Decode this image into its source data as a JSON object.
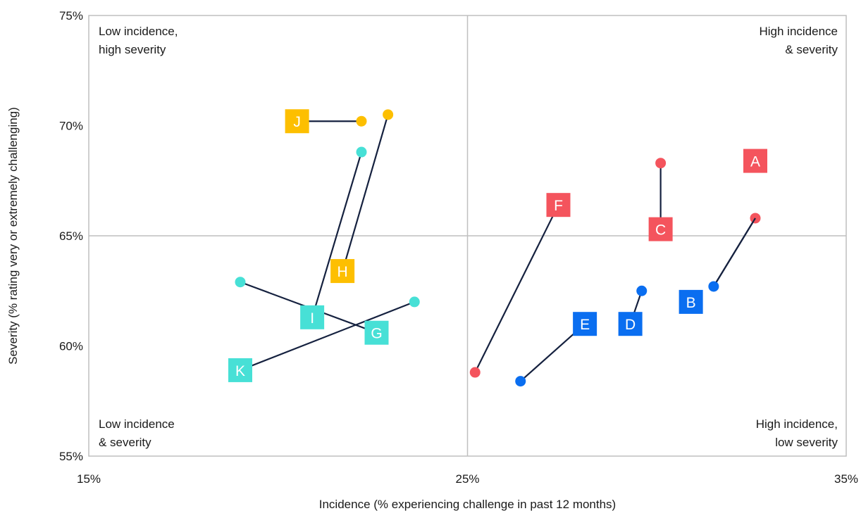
{
  "chart_data": {
    "type": "scatter",
    "title": "",
    "xlabel": "Incidence  (% experiencing challenge in past 12 months)",
    "ylabel": "Severity  (% rating very or extremely challenging)",
    "xlim": [
      15,
      35
    ],
    "ylim": [
      55,
      75
    ],
    "x_ticks": [
      {
        "value": 15,
        "label": "15%"
      },
      {
        "value": 25,
        "label": "25%"
      },
      {
        "value": 35,
        "label": "35%"
      }
    ],
    "y_ticks": [
      {
        "value": 55,
        "label": "55%"
      },
      {
        "value": 60,
        "label": "60%"
      },
      {
        "value": 65,
        "label": "65%"
      },
      {
        "value": 70,
        "label": "70%"
      },
      {
        "value": 75,
        "label": "75%"
      }
    ],
    "quadrant_dividers": {
      "x": 25,
      "y": 65
    },
    "quadrant_labels": [
      {
        "position": "top-left",
        "lines": [
          "Low incidence,",
          "high severity"
        ]
      },
      {
        "position": "top-right",
        "lines": [
          "High incidence",
          "& severity"
        ]
      },
      {
        "position": "bottom-left",
        "lines": [
          "Low incidence",
          "& severity"
        ]
      },
      {
        "position": "bottom-right",
        "lines": [
          "High incidence,",
          "low severity"
        ]
      }
    ],
    "colors": {
      "red": "#f4545d",
      "blue": "#0a6ef0",
      "yellow": "#fdbf00",
      "teal": "#47e0d6",
      "line": "#15213f",
      "grid": "#bfbfbf"
    },
    "series": [
      {
        "label": "A",
        "color": "red",
        "from": {
          "x": 32.6,
          "y": 65.8
        },
        "to": {
          "x": 31.5,
          "y": 62.7
        },
        "label_at": {
          "x": 32.6,
          "y": 68.4
        }
      },
      {
        "label": "B",
        "color": "blue",
        "from": {
          "x": 31.5,
          "y": 62.7
        },
        "to": {
          "x": 32.6,
          "y": 65.8
        },
        "label_at": {
          "x": 30.9,
          "y": 62.0
        }
      },
      {
        "label": "C",
        "color": "red",
        "from": {
          "x": 30.1,
          "y": 68.3
        },
        "to": {
          "x": 30.1,
          "y": 65.3
        },
        "label_at": {
          "x": 30.1,
          "y": 65.3
        }
      },
      {
        "label": "D",
        "color": "blue",
        "from": {
          "x": 29.6,
          "y": 62.5
        },
        "to": {
          "x": 29.3,
          "y": 61.0
        },
        "label_at": {
          "x": 29.3,
          "y": 61.0
        }
      },
      {
        "label": "E",
        "color": "blue",
        "from": {
          "x": 26.4,
          "y": 58.4
        },
        "to": {
          "x": 28.1,
          "y": 61.0
        },
        "label_at": {
          "x": 28.1,
          "y": 61.0
        }
      },
      {
        "label": "F",
        "color": "red",
        "from": {
          "x": 25.2,
          "y": 58.8
        },
        "to": {
          "x": 27.4,
          "y": 66.4
        },
        "label_at": {
          "x": 27.4,
          "y": 66.4
        }
      },
      {
        "label": "G",
        "color": "teal",
        "from": {
          "x": 19.0,
          "y": 62.9
        },
        "to": {
          "x": 22.6,
          "y": 60.6
        },
        "label_at": {
          "x": 22.6,
          "y": 60.6
        }
      },
      {
        "label": "H",
        "color": "yellow",
        "from": {
          "x": 22.9,
          "y": 70.5
        },
        "to": {
          "x": 21.7,
          "y": 63.4
        },
        "label_at": {
          "x": 21.7,
          "y": 63.4
        }
      },
      {
        "label": "I",
        "color": "teal",
        "from": {
          "x": 22.2,
          "y": 68.8
        },
        "to": {
          "x": 20.9,
          "y": 61.3
        },
        "label_at": {
          "x": 20.9,
          "y": 61.3
        }
      },
      {
        "label": "J",
        "color": "yellow",
        "from": {
          "x": 22.2,
          "y": 70.2
        },
        "to": {
          "x": 20.5,
          "y": 70.2
        },
        "label_at": {
          "x": 20.5,
          "y": 70.2
        }
      },
      {
        "label": "K",
        "color": "teal",
        "from": {
          "x": 23.6,
          "y": 62.0
        },
        "to": {
          "x": 19.0,
          "y": 58.9
        },
        "label_at": {
          "x": 19.0,
          "y": 58.9
        }
      }
    ]
  }
}
